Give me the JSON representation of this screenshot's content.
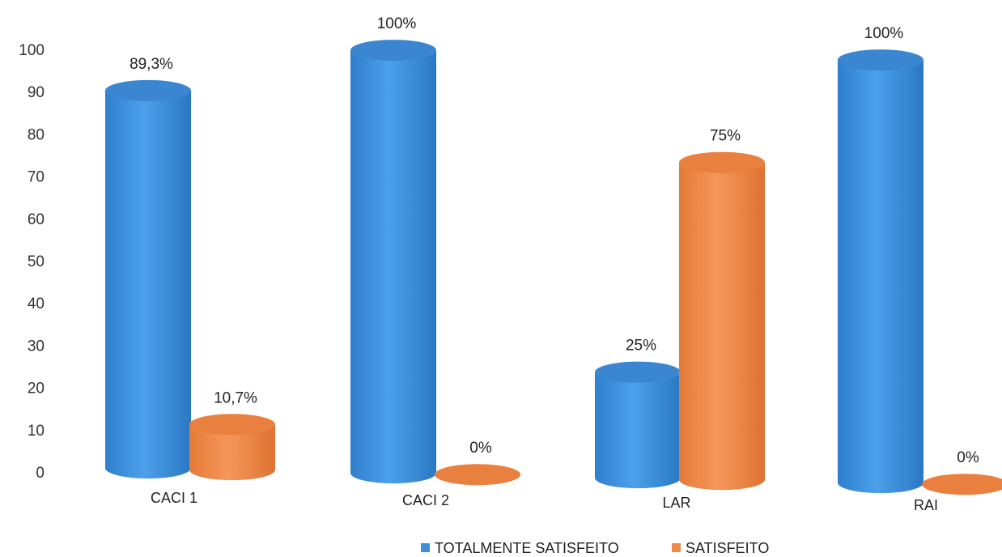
{
  "chart_data": {
    "type": "bar",
    "style": "3d-cylinder",
    "categories": [
      "CACI 1",
      "CACI 2",
      "LAR",
      "RAI"
    ],
    "series": [
      {
        "name": "TOTALMENTE SATISFEITO",
        "color": "#3d8fdb",
        "values": [
          89.3,
          100,
          25,
          100
        ],
        "labels": [
          "89,3%",
          "100%",
          "25%",
          "100%"
        ]
      },
      {
        "name": "SATISFEITO",
        "color": "#ee8a4c",
        "values": [
          10.7,
          0,
          75,
          0
        ],
        "labels": [
          "10,7%",
          "0%",
          "75%",
          "0%"
        ]
      }
    ],
    "title": "",
    "xlabel": "",
    "ylabel": "",
    "ylim": [
      0,
      100
    ],
    "yticks": [
      0,
      10,
      20,
      30,
      40,
      50,
      60,
      70,
      80,
      90,
      100
    ],
    "grid": false,
    "legend": "bottom"
  }
}
